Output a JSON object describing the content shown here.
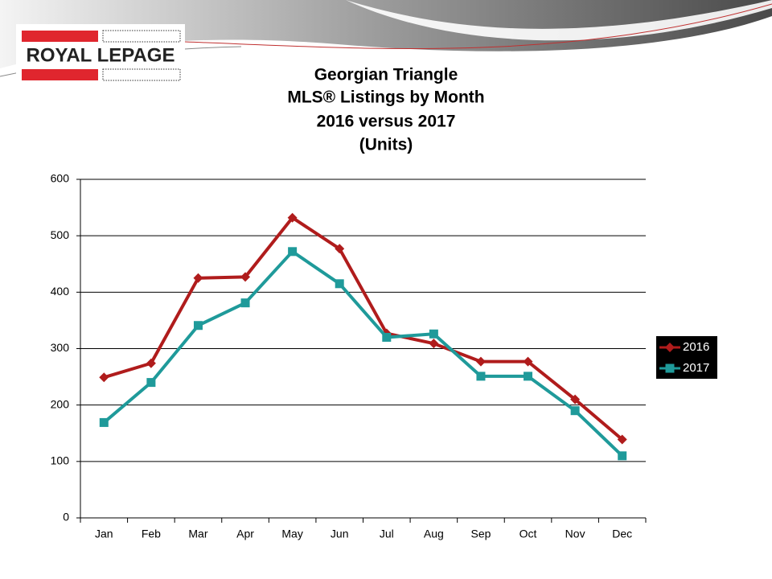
{
  "logo": "ROYAL LEPAGE",
  "chart_data": {
    "type": "line",
    "title": "Georgian Triangle",
    "subtitle": [
      "MLS® Listings by Month",
      "2016 versus 2017",
      "(Units)"
    ],
    "categories": [
      "Jan",
      "Feb",
      "Mar",
      "Apr",
      "May",
      "Jun",
      "Jul",
      "Aug",
      "Sep",
      "Oct",
      "Nov",
      "Dec"
    ],
    "series": [
      {
        "name": "2016",
        "color": "#b01c1c",
        "marker": "diamond",
        "values": [
          249,
          274,
          425,
          427,
          532,
          477,
          327,
          309,
          277,
          277,
          210,
          139
        ]
      },
      {
        "name": "2017",
        "color": "#1f9a9a",
        "marker": "square",
        "values": [
          169,
          240,
          341,
          381,
          472,
          415,
          320,
          326,
          251,
          251,
          190,
          110
        ]
      }
    ],
    "ylim": [
      0,
      600
    ],
    "yticks": [
      0,
      100,
      200,
      300,
      400,
      500,
      600
    ],
    "grid": true,
    "legend": "right"
  }
}
